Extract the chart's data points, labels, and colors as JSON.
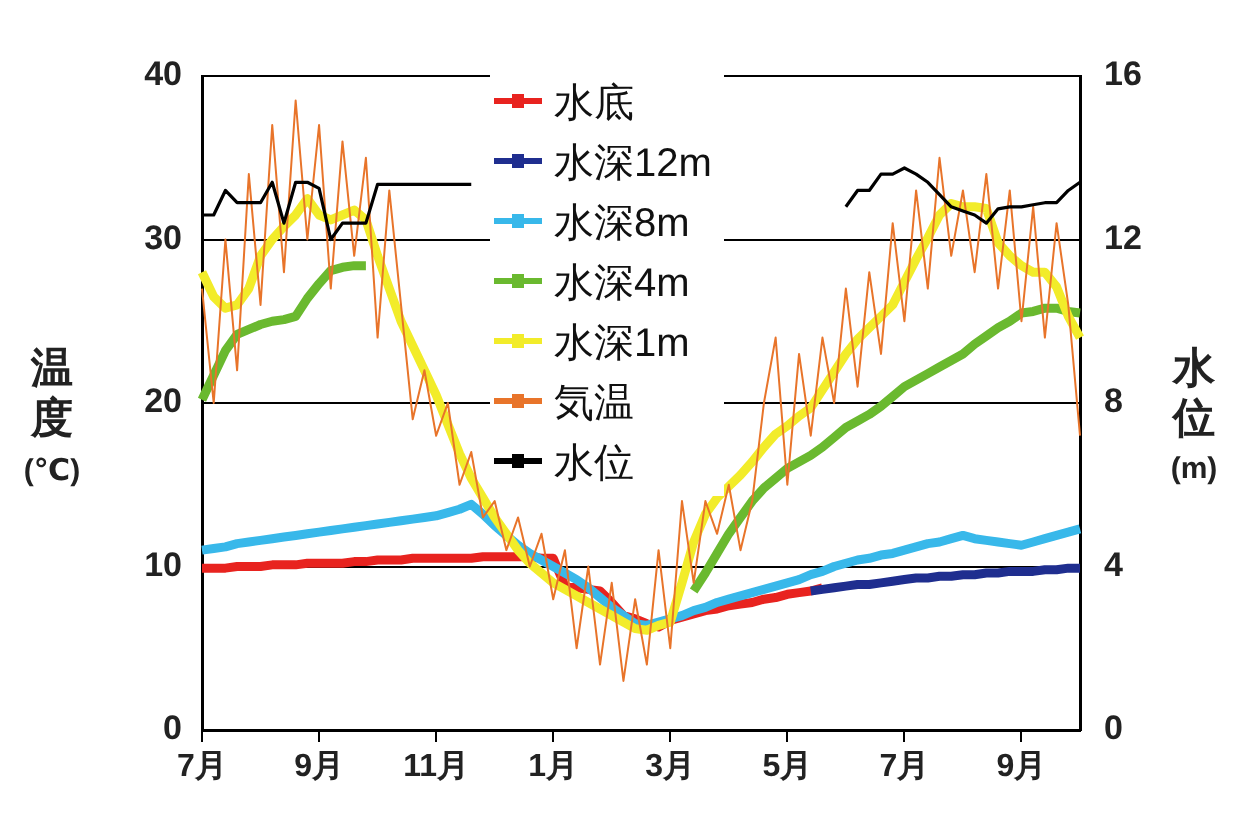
{
  "chart_data": {
    "type": "line",
    "ylabel": "温度 (℃)",
    "y2label": "水位 (m)",
    "categories": [
      "7月",
      null,
      null,
      null,
      null,
      null,
      null,
      null,
      null,
      null,
      "9月",
      null,
      null,
      null,
      null,
      null,
      null,
      null,
      null,
      null,
      "11月",
      null,
      null,
      null,
      null,
      null,
      null,
      null,
      null,
      null,
      "1月",
      null,
      null,
      null,
      null,
      null,
      null,
      null,
      null,
      null,
      "3月",
      null,
      null,
      null,
      null,
      null,
      null,
      null,
      null,
      null,
      "5月",
      null,
      null,
      null,
      null,
      null,
      null,
      null,
      null,
      null,
      "7月",
      null,
      null,
      null,
      null,
      null,
      null,
      null,
      null,
      null,
      "9月",
      null,
      null,
      null,
      null,
      null
    ],
    "ylim": [
      0,
      40
    ],
    "yticks": [
      0,
      10,
      20,
      30,
      40
    ],
    "y2lim": [
      0,
      16
    ],
    "y2ticks": [
      0,
      4,
      8,
      12,
      16
    ],
    "grid": "y",
    "legend": "top",
    "series": [
      {
        "name": "水底",
        "color": "#e8231f",
        "values": [
          9.9,
          9.9,
          9.9,
          10,
          10,
          10,
          10.1,
          10.1,
          10.1,
          10.2,
          10.2,
          10.2,
          10.2,
          10.3,
          10.3,
          10.4,
          10.4,
          10.4,
          10.5,
          10.5,
          10.5,
          10.5,
          10.5,
          10.5,
          10.6,
          10.6,
          10.6,
          10.6,
          10.6,
          10.5,
          10.5,
          8.8,
          8.7,
          8.6,
          8.5,
          7.8,
          7,
          6.8,
          6.5,
          6.3,
          6.7,
          6.9,
          7.1,
          7.3,
          7.4,
          7.6,
          7.7,
          7.8,
          8,
          8.1,
          8.3,
          8.4,
          8.5,
          8.7,
          null,
          null,
          null,
          null,
          null,
          null,
          null,
          null,
          null,
          null,
          null,
          null,
          null,
          null,
          null,
          null,
          null,
          null,
          null,
          null,
          null,
          null
        ]
      },
      {
        "name": "水深12m",
        "color": "#1f2e8f",
        "values": [
          null,
          null,
          null,
          null,
          null,
          null,
          null,
          null,
          null,
          null,
          null,
          null,
          null,
          null,
          null,
          null,
          null,
          null,
          null,
          null,
          null,
          null,
          null,
          null,
          null,
          null,
          null,
          null,
          null,
          null,
          null,
          null,
          null,
          null,
          null,
          null,
          null,
          null,
          null,
          null,
          null,
          null,
          null,
          null,
          null,
          null,
          null,
          null,
          null,
          null,
          null,
          null,
          8.5,
          8.6,
          8.7,
          8.8,
          8.9,
          8.9,
          9,
          9.1,
          9.2,
          9.3,
          9.3,
          9.4,
          9.4,
          9.5,
          9.5,
          9.6,
          9.6,
          9.7,
          9.7,
          9.7,
          9.8,
          9.8,
          9.9,
          9.9
        ]
      },
      {
        "name": "水深8m",
        "color": "#38b8ea",
        "values": [
          11,
          11.1,
          11.2,
          11.4,
          11.5,
          11.6,
          11.7,
          11.8,
          11.9,
          12,
          12.1,
          12.2,
          12.3,
          12.4,
          12.5,
          12.6,
          12.7,
          12.8,
          12.9,
          13,
          13.1,
          13.3,
          13.5,
          13.8,
          13.2,
          12.5,
          11.9,
          11.3,
          10.8,
          10.4,
          10,
          9.6,
          9.2,
          8.7,
          8.1,
          7.5,
          7,
          6.5,
          6.4,
          6.6,
          6.8,
          7,
          7.3,
          7.5,
          7.8,
          8,
          8.2,
          8.4,
          8.6,
          8.8,
          9,
          9.2,
          9.5,
          9.7,
          10,
          10.2,
          10.4,
          10.5,
          10.7,
          10.8,
          11,
          11.2,
          11.4,
          11.5,
          11.7,
          11.9,
          11.7,
          11.6,
          11.5,
          11.4,
          11.3,
          11.5,
          11.7,
          11.9,
          12.1,
          12.3
        ]
      },
      {
        "name": "水深4m",
        "color": "#6ab92f",
        "values": [
          20.2,
          21.7,
          23.2,
          24.2,
          24.5,
          24.8,
          25,
          25.1,
          25.3,
          26.4,
          27.3,
          28.1,
          28.3,
          28.4,
          28.4,
          null,
          null,
          null,
          null,
          null,
          null,
          null,
          null,
          null,
          null,
          null,
          null,
          null,
          null,
          null,
          null,
          null,
          null,
          null,
          null,
          null,
          null,
          null,
          null,
          null,
          null,
          null,
          8.5,
          9.6,
          10.8,
          12,
          13,
          14,
          14.8,
          15.4,
          16,
          16.4,
          16.8,
          17.3,
          17.9,
          18.5,
          18.9,
          19.3,
          19.8,
          20.4,
          21,
          21.4,
          21.8,
          22.2,
          22.6,
          23,
          23.6,
          24.1,
          24.6,
          25,
          25.5,
          25.6,
          25.8,
          25.8,
          25.6,
          25.5
        ]
      },
      {
        "name": "水深1m",
        "color": "#f2ec2a",
        "values": [
          28,
          26.5,
          25.8,
          26,
          27,
          29,
          30,
          30.8,
          31.5,
          32.5,
          31.5,
          31.2,
          31.5,
          31.8,
          31.2,
          29,
          27,
          25,
          23.5,
          22,
          20.5,
          18.7,
          16.9,
          15.4,
          14.2,
          13,
          12,
          11,
          10.2,
          9.6,
          9,
          8.6,
          8.2,
          7.8,
          7.4,
          7,
          6.6,
          6.2,
          6.1,
          6.4,
          6.6,
          9,
          11.5,
          13.2,
          14.2,
          14.9,
          15.6,
          16.4,
          17.3,
          18.1,
          18.6,
          19.2,
          19.7,
          20.8,
          21.9,
          23,
          23.9,
          24.6,
          25.3,
          26,
          27.4,
          28.8,
          30.1,
          31.5,
          32.2,
          32,
          32,
          31.9,
          29.8,
          29,
          28.4,
          28,
          28,
          27.1,
          25.3,
          24
        ]
      },
      {
        "name": "気温",
        "color": "#e8742a",
        "values": [
          27,
          20,
          30,
          22,
          34,
          26,
          37,
          28,
          38.5,
          30,
          37,
          27,
          36,
          29,
          35,
          24,
          33,
          26,
          19,
          22,
          18,
          20,
          15,
          17,
          13,
          14,
          11,
          13,
          10,
          12,
          8,
          11,
          5,
          10,
          4,
          9,
          3,
          8,
          4,
          11,
          5,
          14,
          9,
          14,
          12,
          15,
          11,
          14,
          20,
          24,
          15,
          23,
          18,
          24,
          20,
          27,
          21,
          28,
          23,
          31,
          25,
          33,
          27,
          35,
          29,
          33,
          28,
          34,
          27,
          33,
          25,
          32,
          24,
          31,
          26,
          18
        ]
      },
      {
        "name": "水位",
        "color": "#000000",
        "axis": "y2",
        "values": [
          12.6,
          12.6,
          13.2,
          12.9,
          12.9,
          12.9,
          13.4,
          12.4,
          13.4,
          13.4,
          13.25,
          12,
          12.4,
          12.4,
          12.4,
          13.35,
          13.35,
          13.35,
          13.35,
          13.35,
          13.35,
          13.35,
          13.35,
          13.35,
          null,
          null,
          null,
          null,
          null,
          null,
          null,
          null,
          null,
          null,
          null,
          null,
          null,
          null,
          null,
          null,
          null,
          null,
          null,
          null,
          null,
          null,
          null,
          null,
          null,
          null,
          null,
          null,
          null,
          null,
          null,
          12.8,
          13.2,
          13.2,
          13.6,
          13.6,
          13.75,
          13.6,
          13.4,
          13.1,
          12.8,
          12.7,
          12.6,
          12.4,
          12.75,
          12.8,
          12.8,
          12.85,
          12.9,
          12.9,
          13.2,
          13.4
        ]
      }
    ]
  }
}
